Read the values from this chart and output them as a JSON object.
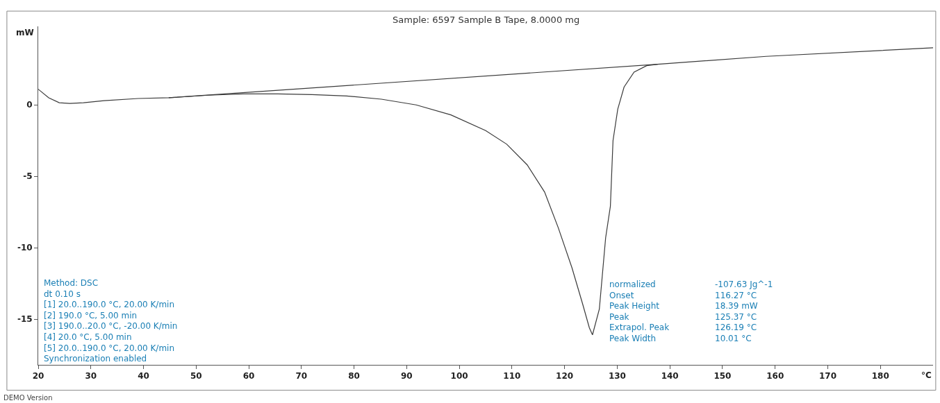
{
  "chart_data": {
    "type": "line",
    "title": "Sample: 6597 Sample B Tape, 8.0000 mg",
    "xlabel": "°C",
    "ylabel": "mW",
    "xlim": [
      20,
      190
    ],
    "xticks": [
      20,
      30,
      40,
      50,
      60,
      70,
      80,
      90,
      100,
      110,
      120,
      130,
      140,
      150,
      160,
      170,
      180
    ],
    "ylim": [
      -18.2,
      5.5
    ],
    "yticks": [
      -15,
      -10,
      -5,
      0
    ],
    "marker": "none",
    "line_style": "solid",
    "series": [
      {
        "color": "#3a3a3a",
        "x": [
          20,
          22,
          24,
          26,
          28.6,
          32.5,
          39,
          44.8,
          52.3,
          58.9,
          65.5,
          72,
          78.6,
          85.2,
          91.8,
          98.4,
          105,
          109,
          112.9,
          116.2,
          118.8,
          121.4,
          123.4,
          124.7,
          125.3,
          126.6,
          127.8,
          128.7,
          129.2,
          130.1,
          131.3,
          133.2,
          135.6,
          137.7,
          158.3,
          190
        ],
        "values": [
          1.1,
          0.5,
          0.15,
          0.1,
          0.15,
          0.3,
          0.45,
          0.5,
          0.68,
          0.77,
          0.77,
          0.72,
          0.63,
          0.4,
          0,
          -0.7,
          -1.8,
          -2.75,
          -4.2,
          -6.1,
          -8.6,
          -11.4,
          -13.9,
          -15.6,
          -16.1,
          -14.3,
          -9.3,
          -7.1,
          -2.5,
          -0.3,
          1.25,
          2.3,
          2.75,
          2.85,
          3.4,
          4.0
        ]
      },
      {
        "color": "#3a3a3a",
        "x": [
          44.8,
          137.7
        ],
        "values": [
          0.5,
          2.85
        ]
      }
    ],
    "annotations": [
      "Method: DSC\ndt 0.10 s\n[1] 20.0..190.0 °C, 20.00 K/min\n[2] 190.0 °C, 5.00 min\n[3] 190.0..20.0 °C, -20.00 K/min\n[4] 20.0 °C, 5.00 min\n[5] 20.0..190.0 °C, 20.00 K/min\nSynchronization enabled",
      "normalized\nOnset\nPeak Height\nPeak\nExtrapol. Peak\nPeak Width",
      "-107.63 Jg^-1\n116.27 °C\n18.39 mW\n125.37 °C\n126.19 °C\n10.01 °C",
      "DEMO Version"
    ]
  }
}
